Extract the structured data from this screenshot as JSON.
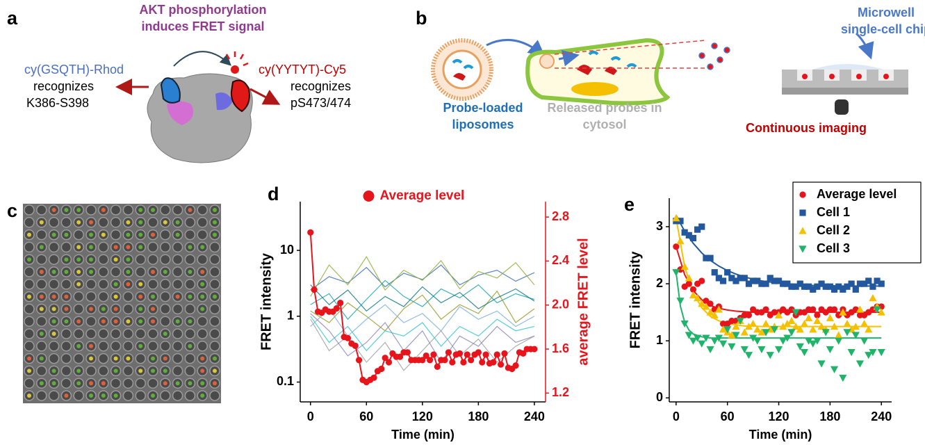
{
  "panels": {
    "a": {
      "label": "a",
      "title_line1": "AKT phosphorylation",
      "title_line2": "induces FRET signal",
      "left_probe": "cy(GSQTH)-Rhod",
      "left_verb": "recognizes",
      "left_site": "K386-S398",
      "right_probe": "cy(YYTYT)-Cy5",
      "right_verb": "recognizes",
      "right_site": "pS473/474"
    },
    "b": {
      "label": "b",
      "chip_line1": "Microwell",
      "chip_line2": "single-cell chip",
      "lipo_line1": "Probe-loaded",
      "lipo_line2": "liposomes",
      "released_line1": "Released probes in",
      "released_line2": "cytosol",
      "imaging": "Continuous imaging"
    },
    "c": {
      "label": "c"
    }
  },
  "chart_data": [
    {
      "type": "line",
      "panel_label": "d",
      "xlabel": "Time (min)",
      "ylabel": "FRET intensity",
      "y2label": "average FRET level",
      "yscale": "log",
      "legend": "upper center",
      "y2_color": "#e8141c",
      "xlim": [
        -11,
        252
      ],
      "xticks": [
        0,
        60,
        120,
        180,
        240
      ],
      "ylim": [
        0.05,
        55
      ],
      "yticks": [
        0.1,
        1,
        10
      ],
      "y2lim": [
        1.12,
        2.94
      ],
      "y2ticks": [
        1.2,
        1.6,
        {
          "value": 2,
          "label": "2.0"
        },
        2.4,
        2.8
      ],
      "x": [
        0,
        20,
        40,
        60,
        80,
        100,
        120,
        140,
        160,
        180,
        200,
        220,
        240
      ],
      "series": [
        {
          "color": "#1aa6b0",
          "mode": "lines",
          "values": [
            1.5,
            2.2,
            0.9,
            1.8,
            3.5,
            2.0,
            1.4,
            2.6,
            1.9,
            3.0,
            1.6,
            2.2,
            1.8
          ]
        },
        {
          "color": "#9a9a2a",
          "mode": "lines",
          "values": [
            1.2,
            0.8,
            1.6,
            1.0,
            0.6,
            1.3,
            2.1,
            0.9,
            1.5,
            1.1,
            2.4,
            0.8,
            1.3
          ]
        },
        {
          "color": "#a0a0a0",
          "mode": "lines",
          "values": [
            0.9,
            0.3,
            0.5,
            0.2,
            0.4,
            0.15,
            0.3,
            0.6,
            0.25,
            0.45,
            0.2,
            0.35,
            0.5
          ]
        },
        {
          "color": "#3b6fb6",
          "mode": "lines",
          "values": [
            2.5,
            4.0,
            3.2,
            5.5,
            2.8,
            4.5,
            3.6,
            6.0,
            3.0,
            4.2,
            5.0,
            3.4,
            4.6
          ]
        },
        {
          "color": "#36c6d6",
          "mode": "lines",
          "values": [
            1.0,
            0.4,
            0.7,
            0.3,
            0.6,
            0.5,
            0.8,
            0.35,
            0.7,
            0.5,
            0.9,
            0.6,
            0.7
          ]
        },
        {
          "color": "#127a86",
          "mode": "lines",
          "values": [
            3.0,
            1.5,
            2.5,
            1.2,
            2.0,
            1.4,
            2.8,
            1.6,
            2.3,
            1.3,
            1.9,
            2.6,
            1.7
          ]
        },
        {
          "color": "#8fb03a",
          "mode": "lines",
          "values": [
            2.0,
            6.0,
            3.0,
            8.0,
            2.5,
            5.0,
            3.5,
            7.0,
            2.6,
            4.8,
            3.8,
            6.5,
            3.0
          ]
        },
        {
          "color": "#7fb2e0",
          "mode": "lines",
          "values": [
            0.7,
            1.3,
            0.5,
            0.9,
            1.5,
            0.8,
            1.1,
            0.6,
            1.4,
            0.9,
            1.2,
            0.7,
            1.0
          ]
        },
        {
          "color": "#8f86c0",
          "mode": "lines",
          "values": [
            1.1,
            0.6,
            0.25,
            0.4,
            0.8,
            0.3,
            0.6,
            0.2,
            0.5,
            0.35,
            0.7,
            0.4,
            0.5
          ]
        },
        {
          "name": "Average level",
          "color": "#e8141c",
          "mode": "lines+markers",
          "marker": "circle",
          "axis": "y2",
          "x": [
            0,
            4,
            8,
            12,
            16,
            20,
            24,
            28,
            32,
            36,
            40,
            44,
            48,
            52,
            56,
            60,
            64,
            68,
            72,
            76,
            80,
            84,
            88,
            92,
            96,
            100,
            104,
            108,
            112,
            116,
            120,
            124,
            128,
            132,
            136,
            140,
            144,
            148,
            152,
            156,
            160,
            164,
            168,
            172,
            176,
            180,
            184,
            188,
            192,
            196,
            200,
            204,
            208,
            212,
            216,
            220,
            224,
            228,
            232,
            236,
            240
          ],
          "values": [
            2.66,
            2.14,
            1.94,
            1.93,
            1.96,
            1.94,
            1.94,
            1.97,
            2.02,
            1.71,
            1.7,
            1.65,
            1.63,
            1.5,
            1.32,
            1.3,
            1.32,
            1.34,
            1.4,
            1.42,
            1.52,
            1.48,
            1.56,
            1.53,
            1.53,
            1.57,
            1.57,
            1.5,
            1.5,
            1.5,
            1.5,
            1.54,
            1.5,
            1.55,
            1.44,
            1.5,
            1.5,
            1.57,
            1.48,
            1.55,
            1.56,
            1.48,
            1.55,
            1.5,
            1.55,
            1.57,
            1.48,
            1.55,
            1.47,
            1.48,
            1.55,
            1.46,
            1.56,
            1.43,
            1.42,
            1.45,
            1.57,
            1.56,
            1.6,
            1.6,
            1.6
          ]
        }
      ]
    },
    {
      "type": "scatter",
      "panel_label": "e",
      "xlabel": "Time (min)",
      "ylabel": "FRET intensity",
      "legend": "upper right",
      "xlim": [
        -8,
        252
      ],
      "xticks": [
        0,
        60,
        120,
        180,
        240
      ],
      "ylim": [
        -0.07,
        3.5
      ],
      "yticks": [
        0,
        1,
        2,
        3
      ],
      "x": [
        0,
        5,
        10,
        15,
        20,
        25,
        30,
        35,
        40,
        45,
        50,
        55,
        60,
        65,
        70,
        75,
        80,
        85,
        90,
        95,
        100,
        105,
        110,
        115,
        120,
        125,
        130,
        135,
        140,
        145,
        150,
        155,
        160,
        165,
        170,
        175,
        180,
        185,
        190,
        195,
        200,
        205,
        210,
        215,
        220,
        225,
        230,
        235,
        240
      ],
      "series": [
        {
          "name": "Average level",
          "color": "#e8141c",
          "mode": "markers",
          "marker": "circle",
          "values": [
            2.65,
            2.25,
            1.95,
            2.0,
            1.9,
            2.0,
            2.05,
            1.7,
            1.65,
            1.55,
            1.6,
            1.3,
            1.3,
            1.35,
            1.35,
            1.4,
            1.45,
            1.45,
            1.55,
            1.5,
            1.5,
            1.55,
            1.45,
            1.5,
            1.5,
            1.55,
            1.5,
            1.55,
            1.45,
            1.5,
            1.5,
            1.55,
            1.55,
            1.45,
            1.55,
            1.5,
            1.55,
            1.55,
            1.45,
            1.55,
            1.45,
            1.5,
            1.55,
            1.45,
            1.45,
            1.5,
            1.55,
            1.6,
            1.6
          ]
        },
        {
          "name": "Cell 1",
          "color": "#23589e",
          "mode": "markers",
          "marker": "square",
          "values": [
            3.1,
            3.1,
            2.9,
            2.85,
            2.8,
            2.95,
            3.0,
            2.45,
            2.45,
            2.2,
            2.1,
            2.05,
            2.2,
            2.1,
            2.05,
            2.1,
            2.1,
            2.0,
            2.05,
            2.05,
            2.0,
            2.0,
            2.1,
            2.05,
            2.05,
            2.0,
            2.0,
            1.95,
            1.95,
            2.0,
            1.95,
            1.95,
            1.9,
            1.95,
            2.0,
            1.95,
            1.95,
            1.9,
            1.95,
            1.9,
            1.95,
            2.0,
            1.9,
            2.0,
            2.0,
            2.05,
            1.95,
            2.05,
            2.0
          ]
        },
        {
          "name": "Cell 2",
          "color": "#f5c000",
          "mode": "markers",
          "marker": "triangle-up",
          "values": [
            3.15,
            2.75,
            2.3,
            2.1,
            1.8,
            1.75,
            1.65,
            1.6,
            1.5,
            1.45,
            1.55,
            1.2,
            1.15,
            1.1,
            1.25,
            1.35,
            1.15,
            1.25,
            1.3,
            1.2,
            1.15,
            1.3,
            1.2,
            1.25,
            1.45,
            1.25,
            1.3,
            1.35,
            1.25,
            1.2,
            1.3,
            1.4,
            1.2,
            1.35,
            1.25,
            1.2,
            1.4,
            1.25,
            1.1,
            1.5,
            1.3,
            1.2,
            1.25,
            1.55,
            1.3,
            1.2,
            1.75,
            1.6,
            1.5
          ]
        },
        {
          "name": "Cell 3",
          "color": "#1fb46a",
          "mode": "markers",
          "marker": "triangle-down",
          "values": [
            2.2,
            1.7,
            1.3,
            1.1,
            1.0,
            1.05,
            0.95,
            1.05,
            0.85,
            1.0,
            1.05,
            0.95,
            1.2,
            0.9,
            1.1,
            1.35,
            0.85,
            0.75,
            1.05,
            1.0,
            0.85,
            1.15,
            0.75,
            1.2,
            0.85,
            1.0,
            1.05,
            1.15,
            1.5,
            0.9,
            0.8,
            1.0,
            0.95,
            1.0,
            0.6,
            1.15,
            0.85,
            0.5,
            1.0,
            0.35,
            1.15,
            0.8,
            1.1,
            0.6,
            1.0,
            0.75,
            0.8,
            1.55,
            0.8
          ]
        },
        {
          "color": "#e8141c",
          "mode": "lines",
          "x": [
            0,
            10,
            20,
            30,
            40,
            50,
            60,
            70,
            80,
            90,
            100,
            110,
            120,
            130,
            140,
            150,
            160,
            170,
            180,
            190,
            200,
            210,
            220,
            230,
            240
          ],
          "values": [
            2.65,
            2.16,
            1.88,
            1.72,
            1.62,
            1.57,
            1.54,
            1.52,
            1.51,
            1.5,
            1.5,
            1.5,
            1.5,
            1.5,
            1.5,
            1.5,
            1.5,
            1.5,
            1.5,
            1.5,
            1.5,
            1.5,
            1.5,
            1.5,
            1.5
          ]
        },
        {
          "color": "#23589e",
          "mode": "lines",
          "x": [
            0,
            10,
            20,
            30,
            40,
            50,
            60,
            70,
            80,
            90,
            100,
            110,
            120,
            130,
            140,
            150,
            160,
            170,
            180,
            190,
            200,
            210,
            220,
            230,
            240
          ],
          "values": [
            3.2,
            2.92,
            2.71,
            2.54,
            2.41,
            2.31,
            2.23,
            2.17,
            2.12,
            2.08,
            2.05,
            2.03,
            2.01,
            2.0,
            1.99,
            1.98,
            1.97,
            1.97,
            1.97,
            1.96,
            1.96,
            1.96,
            1.96,
            1.96,
            1.96
          ]
        },
        {
          "color": "#f5c000",
          "mode": "lines",
          "x": [
            0,
            10,
            20,
            30,
            40,
            50,
            60,
            70,
            80,
            90,
            100,
            110,
            120,
            130,
            140,
            150,
            160,
            170,
            180,
            190,
            200,
            210,
            220,
            230,
            240
          ],
          "values": [
            3.15,
            2.3,
            1.84,
            1.58,
            1.43,
            1.35,
            1.3,
            1.28,
            1.26,
            1.26,
            1.25,
            1.25,
            1.25,
            1.25,
            1.25,
            1.25,
            1.25,
            1.25,
            1.25,
            1.25,
            1.25,
            1.25,
            1.25,
            1.25,
            1.25
          ]
        },
        {
          "color": "#1fb46a",
          "mode": "lines",
          "x": [
            0,
            5,
            10,
            15,
            20,
            30,
            40,
            60,
            80,
            100,
            120,
            140,
            160,
            180,
            200,
            220,
            240
          ],
          "values": [
            2.2,
            1.61,
            1.33,
            1.19,
            1.12,
            1.07,
            1.05,
            1.05,
            1.05,
            1.05,
            1.05,
            1.05,
            1.05,
            1.05,
            1.05,
            1.05,
            1.05
          ]
        }
      ]
    }
  ]
}
